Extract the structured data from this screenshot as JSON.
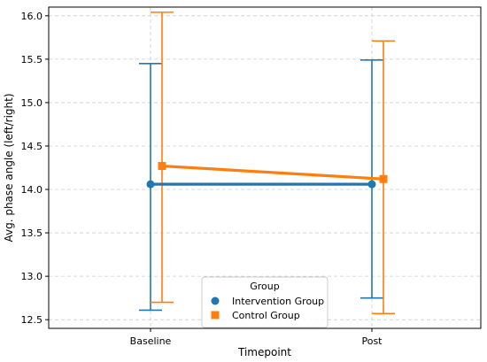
{
  "chart_data": {
    "type": "line",
    "categories": [
      "Baseline",
      "Post"
    ],
    "xlabel": "Timepoint",
    "ylabel": "Avg. phase angle (left/right)",
    "ylim": [
      12.4,
      16.1
    ],
    "yticks": [
      "12.5",
      "13.0",
      "13.5",
      "14.0",
      "14.5",
      "15.0",
      "15.5",
      "16.0"
    ],
    "grid": true,
    "legend": {
      "title": "Group",
      "placement": "lower-center"
    },
    "series": [
      {
        "name": "Intervention Group",
        "color": "#1f77b4",
        "marker": "circle",
        "values": [
          14.06,
          14.06
        ],
        "error_low": [
          12.61,
          12.75
        ],
        "error_high": [
          15.45,
          15.49
        ]
      },
      {
        "name": "Control Group",
        "color": "#ff7f0e",
        "marker": "square",
        "values": [
          14.27,
          14.12
        ],
        "error_low": [
          12.7,
          12.57
        ],
        "error_high": [
          16.04,
          15.71
        ]
      }
    ]
  }
}
